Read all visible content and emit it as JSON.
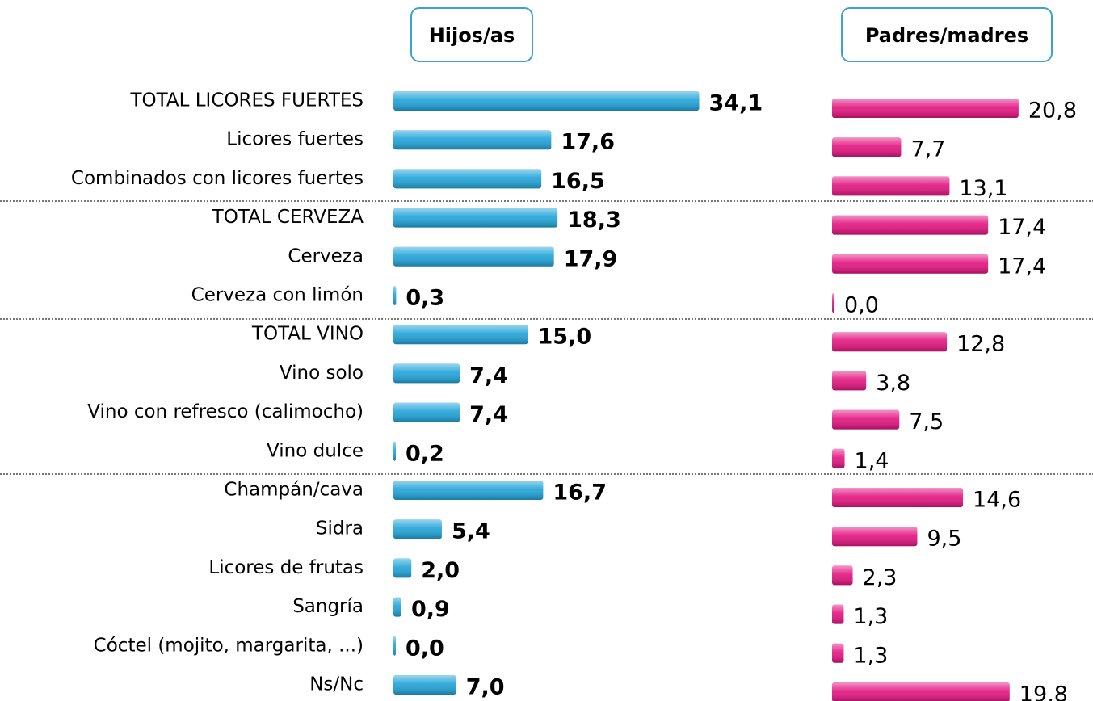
{
  "chart_data": {
    "type": "bar",
    "orientation": "horizontal",
    "categories": [
      "TOTAL LICORES FUERTES",
      "Licores fuertes",
      "Combinados con licores fuertes",
      "TOTAL CERVEZA",
      "Cerveza",
      "Cerveza con limón",
      "TOTAL VINO",
      "Vino solo",
      "Vino con refresco (calimocho)",
      "Vino dulce",
      "Champán/cava",
      "Sidra",
      "Licores de frutas",
      "Sangría",
      "Cóctel (mojito, margarita, ...)",
      "Ns/Nc"
    ],
    "series": [
      {
        "name": "Hijos/as",
        "color": "#1fa3d8",
        "values": [
          34.1,
          17.6,
          16.5,
          18.3,
          17.9,
          0.3,
          15.0,
          7.4,
          7.4,
          0.2,
          16.7,
          5.4,
          2.0,
          0.9,
          0.0,
          7.0
        ],
        "value_labels": [
          "34,1",
          "17,6",
          "16,5",
          "18,3",
          "17,9",
          "0,3",
          "15,0",
          "7,4",
          "7,4",
          "0,2",
          "16,7",
          "5,4",
          "2,0",
          "0,9",
          "0,0",
          "7,0"
        ]
      },
      {
        "name": "Padres/madres",
        "color": "#e3137f",
        "values": [
          20.8,
          7.7,
          13.1,
          17.4,
          17.4,
          0.0,
          12.8,
          3.8,
          7.5,
          1.4,
          14.6,
          9.5,
          2.3,
          1.3,
          1.3,
          19.8
        ],
        "value_labels": [
          "20,8",
          "7,7",
          "13,1",
          "17,4",
          "17,4",
          "0,0",
          "12,8",
          "3,8",
          "7,5",
          "1,4",
          "14,6",
          "9,5",
          "2,3",
          "1,3",
          "1,3",
          "19,8"
        ]
      }
    ]
  }
}
